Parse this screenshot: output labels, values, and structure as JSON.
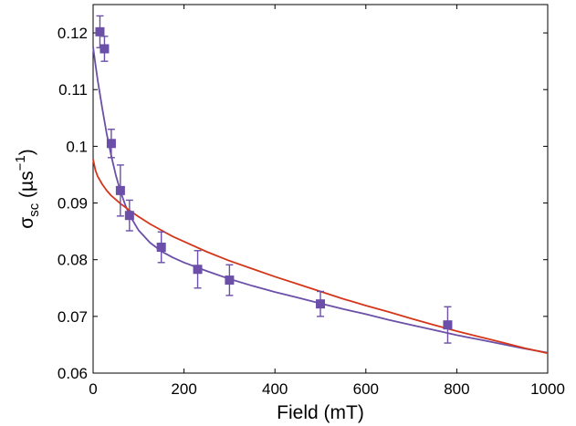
{
  "chart_data": {
    "type": "scatter",
    "title": "",
    "xlabel": "Field (mT)",
    "ylabel": {
      "symbol": "σ",
      "subscript": "sc",
      "unit_open": " (µs",
      "unit_sup": "−1",
      "unit_close": ")"
    },
    "xlim": [
      0,
      1000
    ],
    "ylim": [
      0.06,
      0.125
    ],
    "xticks": [
      0,
      200,
      400,
      600,
      800,
      1000
    ],
    "xtick_labels": [
      "0",
      "200",
      "400",
      "600",
      "800",
      "1000"
    ],
    "yticks": [
      0.06,
      0.07,
      0.08,
      0.09,
      0.1,
      0.11,
      0.12
    ],
    "ytick_labels": [
      "0.06",
      "0.07",
      "0.08",
      "0.09",
      "0.1",
      "0.11",
      "0.12"
    ],
    "grid": false,
    "legend": null,
    "series": [
      {
        "name": "data",
        "kind": "points_with_errorbars",
        "color": "#6b4fa8",
        "x": [
          15,
          25,
          40,
          60,
          80,
          150,
          230,
          300,
          500,
          780
        ],
        "y": [
          0.1202,
          0.1172,
          0.1005,
          0.0922,
          0.0878,
          0.0822,
          0.0783,
          0.0764,
          0.0722,
          0.0685
        ],
        "yerr": [
          0.0028,
          0.0022,
          0.0025,
          0.0045,
          0.0027,
          0.0027,
          0.0033,
          0.0027,
          0.0022,
          0.0032
        ]
      },
      {
        "name": "fit-purple",
        "kind": "line",
        "color": "#6b4fa8",
        "x": [
          0,
          5,
          10,
          20,
          30,
          40,
          50,
          60,
          70,
          80,
          100,
          125,
          150,
          175,
          200,
          250,
          300,
          350,
          400,
          450,
          500,
          550,
          600,
          650,
          700,
          750,
          800,
          850,
          900,
          950,
          1000
        ],
        "y": [
          0.1175,
          0.1145,
          0.1117,
          0.1067,
          0.1022,
          0.0983,
          0.0949,
          0.0921,
          0.0898,
          0.0879,
          0.0852,
          0.083,
          0.0815,
          0.0804,
          0.0795,
          0.078,
          0.0766,
          0.0754,
          0.0743,
          0.0733,
          0.0723,
          0.0713,
          0.0704,
          0.0694,
          0.0685,
          0.0676,
          0.0667,
          0.0659,
          0.0651,
          0.0643,
          0.0636
        ]
      },
      {
        "name": "fit-red",
        "kind": "line",
        "color": "#d4361a",
        "x": [
          0,
          5,
          10,
          20,
          30,
          40,
          50,
          60,
          70,
          80,
          100,
          125,
          150,
          175,
          200,
          250,
          300,
          350,
          400,
          450,
          500,
          550,
          600,
          650,
          700,
          750,
          800,
          850,
          900,
          950,
          1000
        ],
        "y": [
          0.0977,
          0.0958,
          0.0947,
          0.0933,
          0.0922,
          0.0913,
          0.0906,
          0.0899,
          0.0893,
          0.0887,
          0.0876,
          0.0863,
          0.0852,
          0.0841,
          0.0832,
          0.0814,
          0.0798,
          0.0784,
          0.077,
          0.0757,
          0.0744,
          0.0731,
          0.0719,
          0.0708,
          0.0696,
          0.0685,
          0.0674,
          0.0664,
          0.0654,
          0.0644,
          0.0635
        ]
      }
    ]
  }
}
